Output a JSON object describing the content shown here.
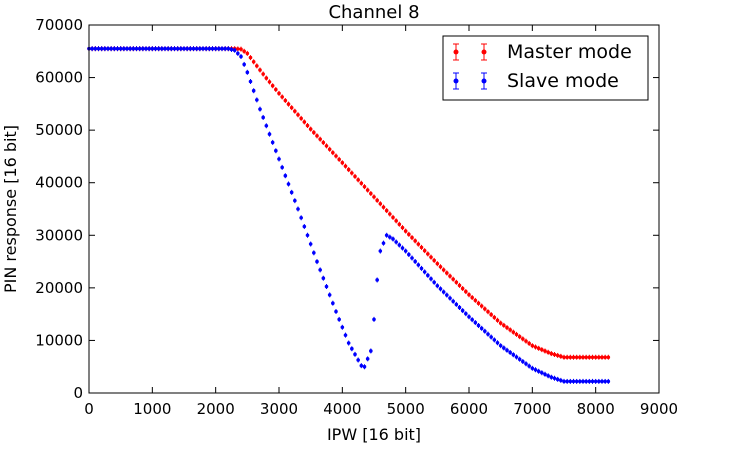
{
  "chart_data": {
    "type": "scatter",
    "title": "Channel 8",
    "xlabel": "IPW [16 bit]",
    "ylabel": "PIN response [16 bit]",
    "xlim": [
      0,
      9000
    ],
    "ylim": [
      0,
      70000
    ],
    "x_ticks": [
      "0",
      "1000",
      "2000",
      "3000",
      "4000",
      "5000",
      "6000",
      "7000",
      "8000",
      "9000"
    ],
    "y_ticks": [
      "0",
      "10000",
      "20000",
      "30000",
      "40000",
      "50000",
      "60000",
      "70000"
    ],
    "grid": false,
    "legend_position": "top-right",
    "marker": "point with vertical error bar",
    "series": [
      {
        "name": "Master mode",
        "color": "#ff0000",
        "x_range": [
          0,
          8200
        ],
        "step": 50,
        "points": [
          [
            0,
            65500
          ],
          [
            2300,
            65500
          ],
          [
            2400,
            65400
          ],
          [
            2500,
            64600
          ],
          [
            2600,
            63000
          ],
          [
            2800,
            59900
          ],
          [
            3000,
            57000
          ],
          [
            3500,
            50200
          ],
          [
            4000,
            43800
          ],
          [
            4500,
            37300
          ],
          [
            5000,
            30800
          ],
          [
            5500,
            24600
          ],
          [
            6000,
            18700
          ],
          [
            6500,
            13300
          ],
          [
            7000,
            9000
          ],
          [
            7300,
            7500
          ],
          [
            7500,
            6800
          ],
          [
            8200,
            6800
          ]
        ]
      },
      {
        "name": "Slave mode",
        "color": "#0000ff",
        "x_range": [
          0,
          8200
        ],
        "step": 50,
        "points": [
          [
            0,
            65500
          ],
          [
            2200,
            65500
          ],
          [
            2300,
            65200
          ],
          [
            2400,
            64000
          ],
          [
            2500,
            61000
          ],
          [
            2700,
            54000
          ],
          [
            3000,
            44500
          ],
          [
            3300,
            35000
          ],
          [
            3600,
            25000
          ],
          [
            3900,
            15500
          ],
          [
            4100,
            9500
          ],
          [
            4300,
            5200
          ],
          [
            4350,
            5000
          ],
          [
            4450,
            8000
          ],
          [
            4500,
            14000
          ],
          [
            4550,
            21500
          ],
          [
            4600,
            27000
          ],
          [
            4700,
            30000
          ],
          [
            4800,
            29300
          ],
          [
            5000,
            27000
          ],
          [
            5500,
            20400
          ],
          [
            6000,
            14500
          ],
          [
            6500,
            9000
          ],
          [
            7000,
            4700
          ],
          [
            7300,
            3000
          ],
          [
            7500,
            2200
          ],
          [
            8200,
            2200
          ]
        ]
      }
    ]
  }
}
